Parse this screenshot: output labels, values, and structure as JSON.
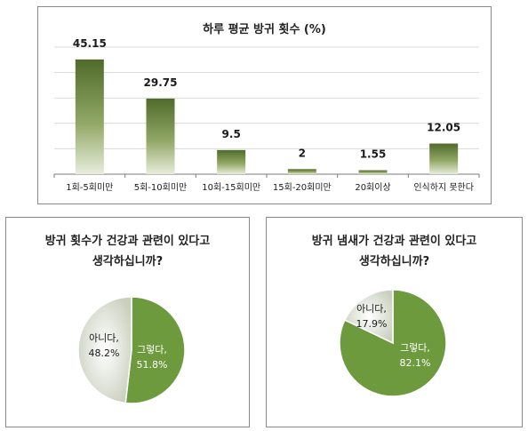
{
  "chart_data": [
    {
      "type": "bar",
      "title": "하루 평균 방귀 횟수 (%)",
      "categories": [
        "1회-5회미만",
        "5회-10회미만",
        "10회-15회미만",
        "15회-20회미만",
        "20회이상",
        "인식하지 못한다"
      ],
      "values": [
        45.15,
        29.75,
        9.5,
        2,
        1.55,
        12.05
      ],
      "value_labels": [
        "45.15",
        "29.75",
        "9.5",
        "2",
        "1.55",
        "12.05"
      ],
      "ylim": [
        0,
        50
      ],
      "grid": true
    },
    {
      "type": "pie",
      "title_lines": [
        "방귀 횟수가 건강과 관련이 있다고",
        "생각하십니까?"
      ],
      "slices": [
        {
          "label": "그렇다,",
          "percent_label": "51.8%",
          "value": 51.8,
          "color": "#6e9a3e"
        },
        {
          "label": "아니다,",
          "percent_label": "48.2%",
          "value": 48.2,
          "color": "#c9cfbe"
        }
      ]
    },
    {
      "type": "pie",
      "title_lines": [
        "방귀 냄새가 건강과 관련이 있다고",
        "생각하십니까?"
      ],
      "slices": [
        {
          "label": "그렇다,",
          "percent_label": "82.1%",
          "value": 82.1,
          "color": "#6e9a3e"
        },
        {
          "label": "아니다,",
          "percent_label": "17.9%",
          "value": 17.9,
          "color": "#c9cfbe"
        }
      ]
    }
  ]
}
